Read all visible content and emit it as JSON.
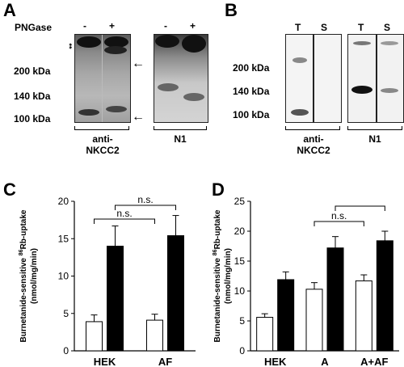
{
  "panels": {
    "A": {
      "letter": "A",
      "treatment_label": "PNGase",
      "lane_signs": [
        "-",
        "+",
        "-",
        "+"
      ],
      "asterisks": "**",
      "markers": [
        "200 kDa",
        "140 kDa",
        "100 kDa"
      ],
      "captions": [
        "anti-NKCC2",
        "N1"
      ]
    },
    "B": {
      "letter": "B",
      "lane_labels": [
        "T",
        "S",
        "T",
        "S"
      ],
      "markers": [
        "200 kDa",
        "140 kDa",
        "100 kDa"
      ],
      "captions": [
        "anti-NKCC2",
        "N1"
      ]
    }
  },
  "chart_data": [
    {
      "panel": "C",
      "type": "bar",
      "ylabel_main": "Burnetanide-sensitive",
      "ylabel_iso": "86",
      "ylabel_rest": "Rb-uptake",
      "ylabel_units": "(nmol/mg/min)",
      "ylim": [
        0,
        20
      ],
      "yticks": [
        0,
        5,
        10,
        15,
        20
      ],
      "categories": [
        "HEK",
        "AF"
      ],
      "series": [
        {
          "fill": "#ffffff",
          "values": [
            3.9,
            4.1
          ],
          "errors": [
            0.9,
            0.8
          ]
        },
        {
          "fill": "#000000",
          "values": [
            14.0,
            15.4
          ],
          "errors": [
            2.7,
            2.7
          ]
        }
      ],
      "annotations": [
        "n.s.",
        "n.s."
      ]
    },
    {
      "panel": "D",
      "type": "bar",
      "ylabel_main": "Burnetanide-sensitive",
      "ylabel_iso": "86",
      "ylabel_rest": "Rb-uptake",
      "ylabel_units": "(nmol/mg/min)",
      "ylim": [
        0,
        25
      ],
      "yticks": [
        0,
        5,
        10,
        15,
        20,
        25
      ],
      "categories": [
        "HEK",
        "A",
        "A+AF"
      ],
      "series": [
        {
          "fill": "#ffffff",
          "values": [
            5.6,
            10.3,
            11.7
          ],
          "errors": [
            0.6,
            1.1,
            1.0
          ]
        },
        {
          "fill": "#000000",
          "values": [
            11.9,
            17.2,
            18.4
          ],
          "errors": [
            1.3,
            1.9,
            1.6
          ]
        }
      ],
      "annotations": [
        "n.s."
      ]
    }
  ]
}
